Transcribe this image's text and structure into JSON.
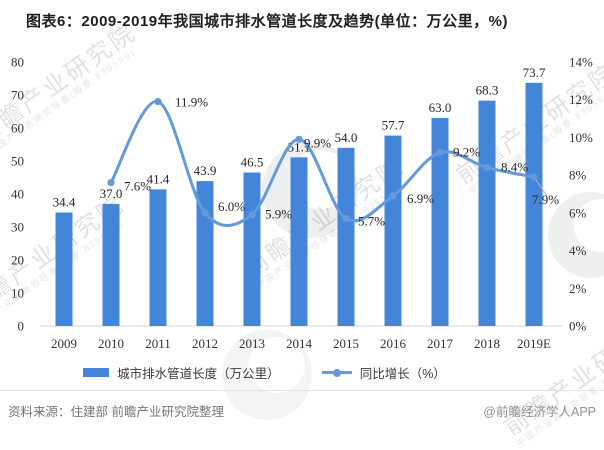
{
  "title": "图表6：2009-2019年我国城市排水管道长度及趋势(单位：万公里，%)",
  "chart_data": {
    "type": "bar",
    "subtype": "bar+line-combo",
    "categories": [
      "2009",
      "2010",
      "2011",
      "2012",
      "2013",
      "2014",
      "2015",
      "2016",
      "2017",
      "2018",
      "2019E"
    ],
    "series": [
      {
        "name": "城市排水管道长度（万公里）",
        "type": "bar",
        "axis": "left",
        "color": "#4385D8",
        "values": [
          34.4,
          37.0,
          41.4,
          43.9,
          46.5,
          51.1,
          54.0,
          57.7,
          63.0,
          68.3,
          73.7
        ]
      },
      {
        "name": "同比增长（%）",
        "type": "line",
        "axis": "right",
        "color": "#6499DC",
        "label_suffix": "%",
        "values": [
          null,
          7.6,
          11.9,
          6.0,
          5.9,
          9.9,
          5.7,
          6.9,
          9.2,
          8.4,
          7.9
        ]
      }
    ],
    "left_axis": {
      "min": 0,
      "max": 80,
      "step": 10
    },
    "right_axis": {
      "min": 0,
      "max": 14,
      "step": 2,
      "suffix": "%"
    },
    "grid": false,
    "legend_position": "bottom",
    "data_labels": true
  },
  "footer": {
    "source": "资料来源：住建部 前瞻产业研究院整理",
    "credit": "@前瞻经济学人APP"
  },
  "watermark": {
    "brand": "前瞻产业研究院",
    "sub": "中国产业咨询领导者(股票:839599)"
  }
}
